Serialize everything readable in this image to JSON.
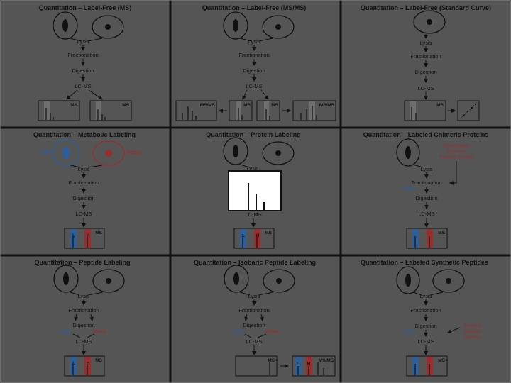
{
  "colors": {
    "background": "#555555",
    "panel_border": "#8a8a8a",
    "grid_line": "#111111",
    "ink": "#111111",
    "light_blue": "#2d5f9a",
    "heavy_red": "#9b2d2d",
    "inset_box": "#ffffff"
  },
  "common": {
    "lysis": "Lysis",
    "fractionation": "Fractionation",
    "digestion": "Digestion",
    "lcms": "LC-MS",
    "ms": "MS",
    "msms": "MS/MS",
    "light": "Light",
    "heavy": "Heavy",
    "l": "L",
    "h": "H"
  },
  "panels": [
    {
      "title": "Quantitation – Label-Free (MS)"
    },
    {
      "title": "Quantitation – Label-Free (MS/MS)"
    },
    {
      "title": "Quantitation – Label-Free (Standard Curve)"
    },
    {
      "title": "Quantitation – Metabolic Labeling"
    },
    {
      "title": "Quantitation – Protein Labeling"
    },
    {
      "title": "Quantitation – Labeled Chimeric Proteins",
      "side_note": [
        "Recombinant",
        "Chimeric",
        "Proteins (Heavy)"
      ]
    },
    {
      "title": "Quantitation – Peptide Labeling"
    },
    {
      "title": "Quantitation – Isobaric Peptide Labeling"
    },
    {
      "title": "Quantitation – Labeled Synthetic Peptides",
      "side_note": [
        "Synthetic",
        "Peptides",
        "(Heavy)"
      ]
    }
  ]
}
